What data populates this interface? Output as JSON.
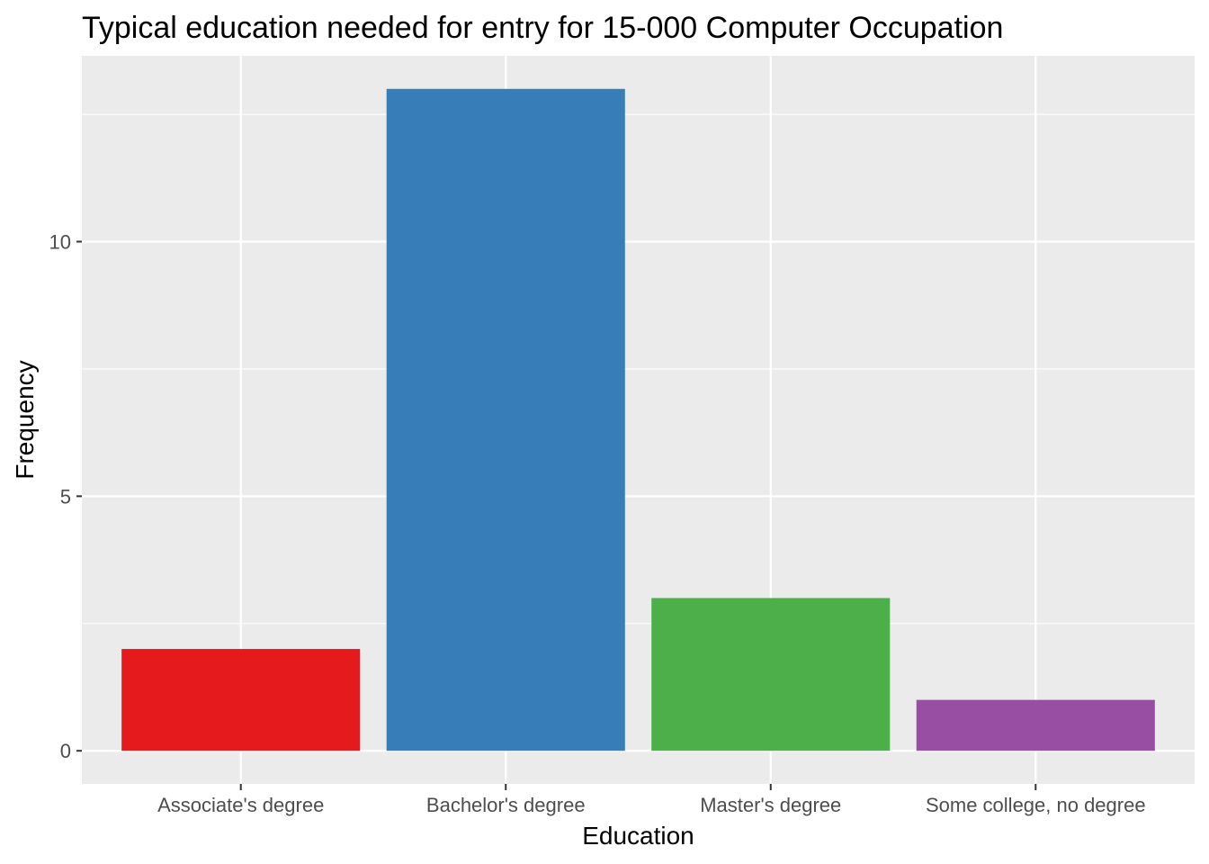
{
  "chart_data": {
    "type": "bar",
    "title": "Typical education needed for entry for 15-000 Computer Occupation",
    "xlabel": "Education",
    "ylabel": "Frequency",
    "categories": [
      "Associate's degree",
      "Bachelor's degree",
      "Master's degree",
      "Some college, no degree"
    ],
    "values": [
      2,
      13,
      3,
      1
    ],
    "colors": [
      "#E41A1C",
      "#377EB8",
      "#4DAF4A",
      "#984EA3"
    ],
    "ylim": [
      -0.65,
      13.65
    ],
    "yticks": [
      0,
      5,
      10
    ],
    "ytick_labels": [
      "0",
      "5",
      "10"
    ],
    "grid": true,
    "background": "#EBEBEB",
    "legend": "none"
  }
}
